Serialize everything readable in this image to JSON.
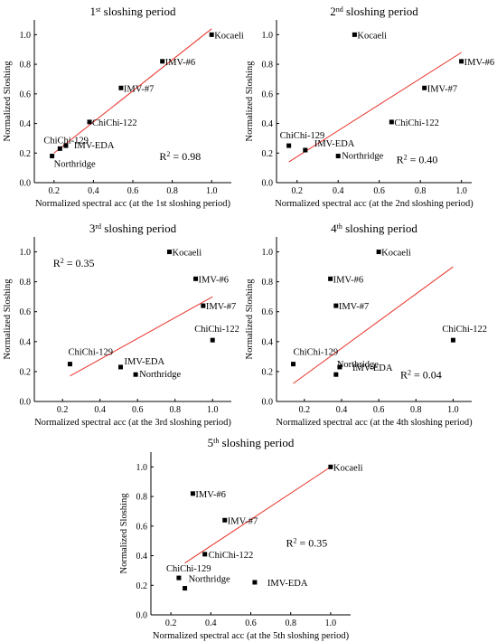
{
  "colors": {
    "fit_line": "#e8322a",
    "axes": "#000000",
    "points": "#000000"
  },
  "chart_data": [
    {
      "type": "scatter",
      "title": {
        "prefix": "1",
        "sup": "st",
        "suffix": " sloshing period"
      },
      "xlabel": "Normalized spectral acc (at the 1st sloshing period)",
      "ylabel": "Normalized Sloshing",
      "xlim": [
        0.1,
        1.1
      ],
      "ylim": [
        0.0,
        1.1
      ],
      "xticks": [
        0.2,
        0.4,
        0.6,
        0.8,
        1.0
      ],
      "yticks": [
        0.0,
        0.2,
        0.4,
        0.6,
        0.8,
        1.0
      ],
      "points": [
        {
          "label": "Kocaeli",
          "x": 1.0,
          "y": 1.0
        },
        {
          "label": "IMV-#6",
          "x": 0.75,
          "y": 0.82
        },
        {
          "label": "IMV-#7",
          "x": 0.54,
          "y": 0.64
        },
        {
          "label": "ChiChi-122",
          "x": 0.38,
          "y": 0.41
        },
        {
          "label": "ChiChi-129",
          "x": 0.23,
          "y": 0.23
        },
        {
          "label": "IMV-EDA",
          "x": 0.26,
          "y": 0.25
        },
        {
          "label": "Northridge",
          "x": 0.19,
          "y": 0.18
        }
      ],
      "fit": {
        "x": [
          0.2,
          1.0
        ],
        "y": [
          0.2,
          1.04
        ]
      },
      "r2": {
        "prefix": "R",
        "sup": "2",
        "value": " = 0.98"
      }
    },
    {
      "type": "scatter",
      "title": {
        "prefix": "2",
        "sup": "nd",
        "suffix": " sloshing period"
      },
      "xlabel": "Normalized spectral acc (at the 2nd sloshing period)",
      "ylabel": "Normalized Sloshing",
      "xlim": [
        0.1,
        1.05
      ],
      "ylim": [
        0.0,
        1.1
      ],
      "xticks": [
        0.2,
        0.4,
        0.6,
        0.8,
        1.0
      ],
      "yticks": [
        0.0,
        0.2,
        0.4,
        0.6,
        0.8,
        1.0
      ],
      "points": [
        {
          "label": "Kocaeli",
          "x": 0.48,
          "y": 1.0
        },
        {
          "label": "IMV-#6",
          "x": 1.0,
          "y": 0.82
        },
        {
          "label": "IMV-#7",
          "x": 0.82,
          "y": 0.64
        },
        {
          "label": "ChiChi-122",
          "x": 0.66,
          "y": 0.41
        },
        {
          "label": "ChiChi-129",
          "x": 0.16,
          "y": 0.25
        },
        {
          "label": "IMV-EDA",
          "x": 0.24,
          "y": 0.22
        },
        {
          "label": "Northridge",
          "x": 0.4,
          "y": 0.18
        }
      ],
      "fit": {
        "x": [
          0.16,
          1.0
        ],
        "y": [
          0.14,
          0.88
        ]
      },
      "r2": {
        "prefix": "R",
        "sup": "2",
        "value": " = 0.40"
      }
    },
    {
      "type": "scatter",
      "title": {
        "prefix": "3",
        "sup": "rd",
        "suffix": " sloshing period"
      },
      "xlabel": "Normalized spectral acc (at the 3rd sloshing period)",
      "ylabel": "Normalized Sloshing",
      "xlim": [
        0.05,
        1.1
      ],
      "ylim": [
        0.0,
        1.1
      ],
      "xticks": [
        0.2,
        0.4,
        0.6,
        0.8,
        1.0
      ],
      "yticks": [
        0.0,
        0.2,
        0.4,
        0.6,
        0.8,
        1.0
      ],
      "points": [
        {
          "label": "Kocaeli",
          "x": 0.77,
          "y": 1.0
        },
        {
          "label": "IMV-#6",
          "x": 0.91,
          "y": 0.82
        },
        {
          "label": "IMV-#7",
          "x": 0.95,
          "y": 0.64
        },
        {
          "label": "ChiChi-122",
          "x": 1.0,
          "y": 0.41
        },
        {
          "label": "ChiChi-129",
          "x": 0.24,
          "y": 0.25
        },
        {
          "label": "IMV-EDA",
          "x": 0.51,
          "y": 0.23
        },
        {
          "label": "Northridge",
          "x": 0.59,
          "y": 0.18
        }
      ],
      "fit": {
        "x": [
          0.24,
          1.0
        ],
        "y": [
          0.17,
          0.7
        ]
      },
      "r2": {
        "prefix": "R",
        "sup": "2",
        "value": " = 0.35"
      }
    },
    {
      "type": "scatter",
      "title": {
        "prefix": "4",
        "sup": "th",
        "suffix": " sloshing period"
      },
      "xlabel": "Normalized spectral acc (at the 4th sloshing period)",
      "ylabel": "Normalized Sloshing",
      "xlim": [
        0.05,
        1.1
      ],
      "ylim": [
        0.0,
        1.1
      ],
      "xticks": [
        0.2,
        0.4,
        0.6,
        0.8,
        1.0
      ],
      "yticks": [
        0.0,
        0.2,
        0.4,
        0.6,
        0.8,
        1.0
      ],
      "points": [
        {
          "label": "Kocaeli",
          "x": 0.6,
          "y": 1.0
        },
        {
          "label": "IMV-#6",
          "x": 0.34,
          "y": 0.82
        },
        {
          "label": "IMV-#7",
          "x": 0.37,
          "y": 0.64
        },
        {
          "label": "ChiChi-122",
          "x": 1.0,
          "y": 0.41
        },
        {
          "label": "ChiChi-129",
          "x": 0.14,
          "y": 0.25
        },
        {
          "label": "IMV-EDA",
          "x": 0.39,
          "y": 0.23
        },
        {
          "label": "Northridge",
          "x": 0.37,
          "y": 0.18
        }
      ],
      "fit": {
        "x": [
          0.14,
          1.0
        ],
        "y": [
          0.12,
          0.9
        ]
      },
      "r2": {
        "prefix": "R",
        "sup": "2",
        "value": " = 0.04"
      }
    },
    {
      "type": "scatter",
      "title": {
        "prefix": "5",
        "sup": "th",
        "suffix": " sloshing period"
      },
      "xlabel": "Normalized spectral acc (at the 5th sloshing period)",
      "ylabel": "Normalized Sloshing",
      "xlim": [
        0.1,
        1.1
      ],
      "ylim": [
        0.0,
        1.1
      ],
      "xticks": [
        0.2,
        0.4,
        0.6,
        0.8,
        1.0
      ],
      "yticks": [
        0.0,
        0.2,
        0.4,
        0.6,
        0.8,
        1.0
      ],
      "points": [
        {
          "label": "Kocaeli",
          "x": 1.0,
          "y": 1.0
        },
        {
          "label": "IMV-#6",
          "x": 0.31,
          "y": 0.82
        },
        {
          "label": "IMV-#7",
          "x": 0.47,
          "y": 0.64
        },
        {
          "label": "ChiChi-122",
          "x": 0.37,
          "y": 0.41
        },
        {
          "label": "ChiChi-129",
          "x": 0.24,
          "y": 0.25
        },
        {
          "label": "IMV-EDA",
          "x": 0.62,
          "y": 0.22
        },
        {
          "label": "Northridge",
          "x": 0.27,
          "y": 0.18
        }
      ],
      "fit": {
        "x": [
          0.27,
          1.0
        ],
        "y": [
          0.35,
          1.0
        ]
      },
      "r2": {
        "prefix": "R",
        "sup": "2",
        "value": " = 0.35"
      }
    }
  ]
}
